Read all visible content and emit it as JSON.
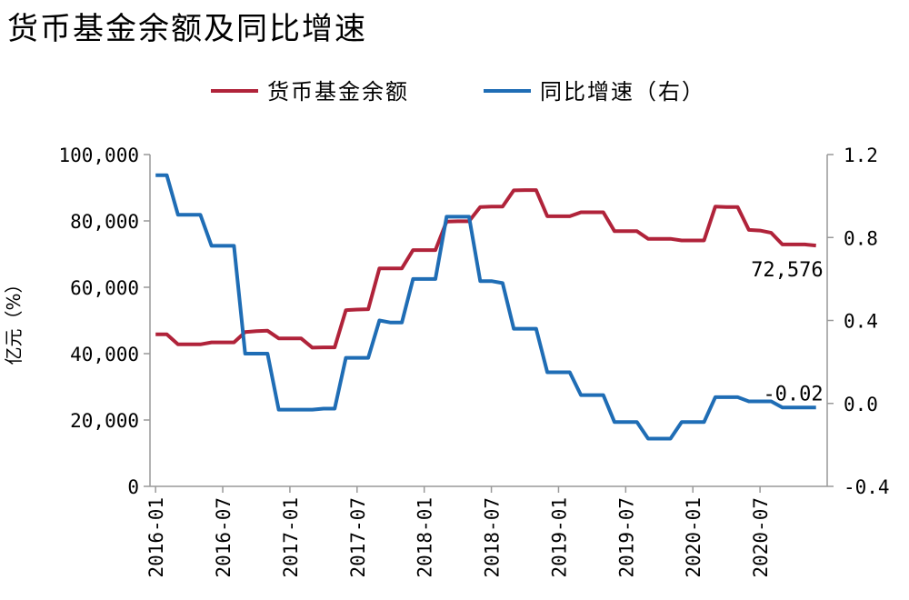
{
  "chart_data": {
    "type": "line",
    "title": "货币基金余额及同比增速",
    "ylabel": "亿元（%）",
    "ylim_left": [
      0,
      100000
    ],
    "ylim_right": [
      -0.4,
      1.2
    ],
    "left_ticks": [
      "0",
      "20,000",
      "40,000",
      "60,000",
      "80,000",
      "100,000"
    ],
    "right_ticks": [
      "-0.4",
      "0.0",
      "0.4",
      "0.8",
      "1.2"
    ],
    "x_labels": [
      "2016-01",
      "2016-07",
      "2017-01",
      "2017-07",
      "2018-01",
      "2018-07",
      "2019-01",
      "2019-07",
      "2020-01",
      "2020-07"
    ],
    "legend_position": "top",
    "grid": false,
    "series": [
      {
        "name": "货币基金余额",
        "axis": "left",
        "color": "#b0233a",
        "values": [
          45800,
          45800,
          42800,
          42800,
          42800,
          43400,
          43400,
          43400,
          46500,
          46800,
          46900,
          44600,
          44600,
          44600,
          41800,
          41900,
          41900,
          53100,
          53300,
          53400,
          65700,
          65700,
          65700,
          71200,
          71200,
          71200,
          79800,
          79900,
          79900,
          84200,
          84300,
          84300,
          89200,
          89300,
          89300,
          81400,
          81400,
          81400,
          82600,
          82600,
          82600,
          76900,
          76900,
          76900,
          74600,
          74600,
          74600,
          74100,
          74100,
          74100,
          84300,
          84200,
          84200,
          77300,
          77100,
          76400,
          72900,
          72900,
          72900,
          72576
        ]
      },
      {
        "name": "同比增速（右）",
        "axis": "right",
        "color": "#1f6db5",
        "values": [
          1.1,
          1.1,
          0.91,
          0.91,
          0.91,
          0.76,
          0.76,
          0.76,
          0.24,
          0.24,
          0.24,
          -0.03,
          -0.03,
          -0.03,
          -0.03,
          -0.025,
          -0.025,
          0.22,
          0.22,
          0.22,
          0.4,
          0.39,
          0.39,
          0.6,
          0.6,
          0.6,
          0.9,
          0.9,
          0.9,
          0.59,
          0.59,
          0.58,
          0.36,
          0.36,
          0.36,
          0.15,
          0.15,
          0.15,
          0.04,
          0.04,
          0.04,
          -0.09,
          -0.09,
          -0.09,
          -0.17,
          -0.17,
          -0.17,
          -0.09,
          -0.09,
          -0.09,
          0.03,
          0.03,
          0.03,
          0.01,
          0.01,
          0.01,
          -0.02,
          -0.02,
          -0.02,
          -0.02
        ]
      }
    ],
    "annotations": [
      {
        "text": "72,576",
        "series": 0
      },
      {
        "text": "-0.02",
        "series": 1
      }
    ]
  }
}
